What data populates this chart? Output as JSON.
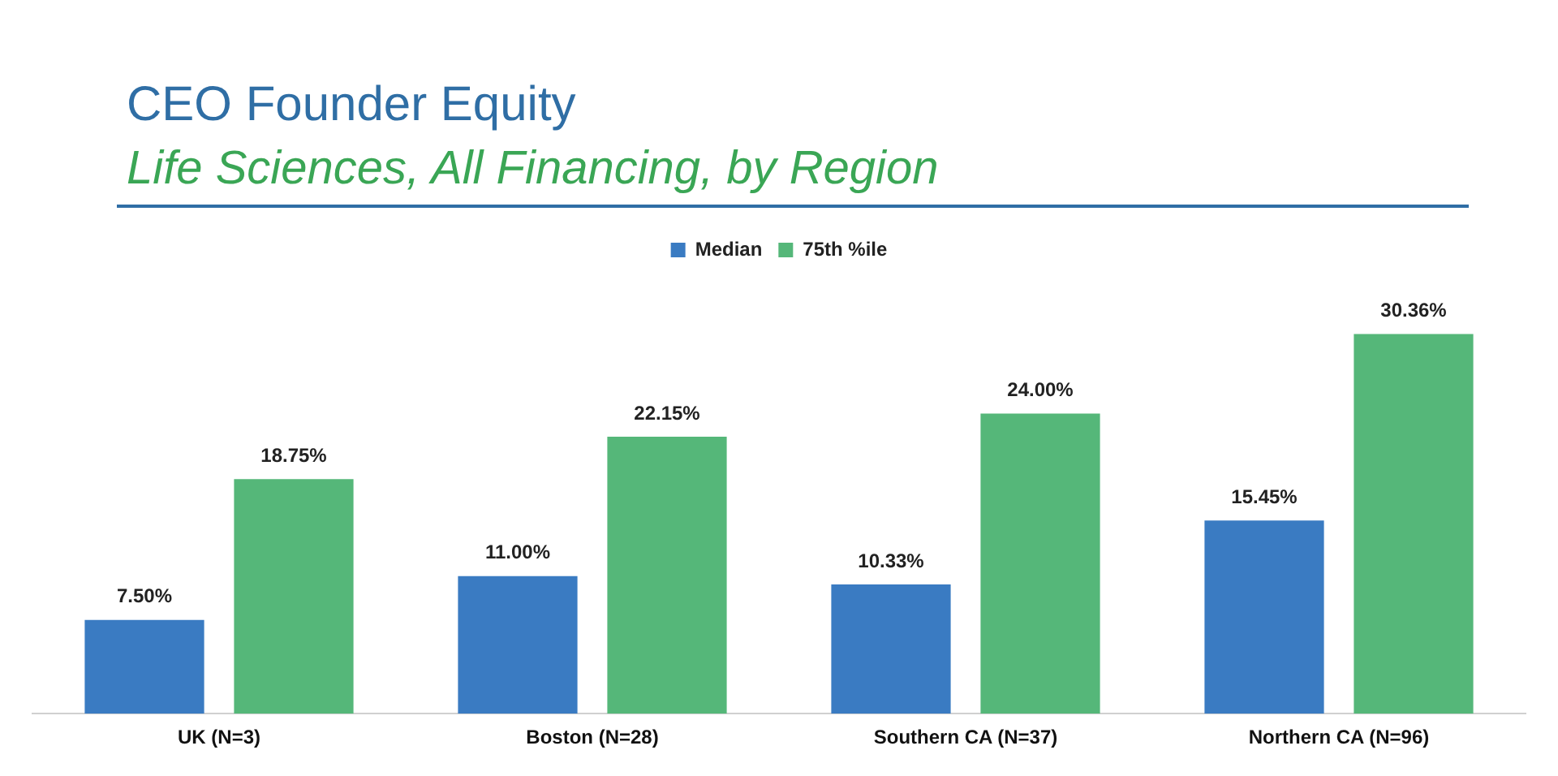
{
  "chart_data": {
    "type": "bar",
    "title": "CEO Founder Equity",
    "subtitle": "Life Sciences, All Financing, by Region",
    "categories": [
      "UK (N=3)",
      "Boston (N=28)",
      "Southern CA (N=37)",
      "Northern CA (N=96)"
    ],
    "series": [
      {
        "name": "Median",
        "color": "#3a7bc2",
        "values": [
          7.5,
          11.0,
          10.33,
          15.45
        ],
        "value_labels": [
          "7.50%",
          "11.00%",
          "10.33%",
          "15.45%"
        ]
      },
      {
        "name": "75th %ile",
        "color": "#55b779",
        "values": [
          18.75,
          22.15,
          24.0,
          30.36
        ],
        "value_labels": [
          "18.75%",
          "22.15%",
          "24.00%",
          "30.36%"
        ]
      }
    ],
    "legend": "top",
    "grid": false
  }
}
